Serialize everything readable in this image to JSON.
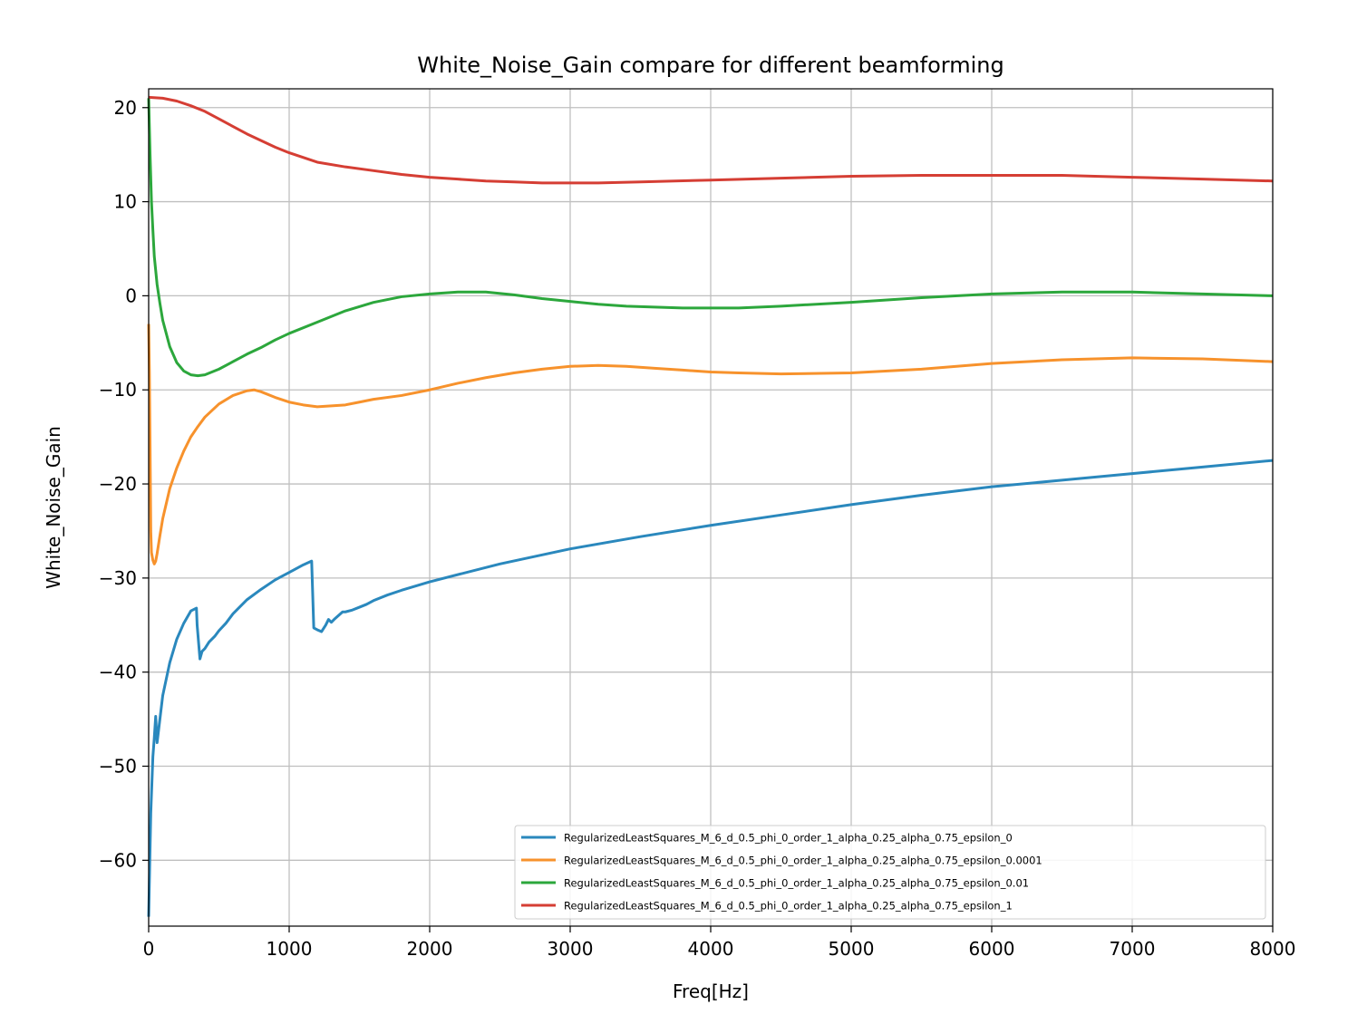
{
  "chart_data": {
    "type": "line",
    "title": "White_Noise_Gain compare for different beamforming",
    "xlabel": "Freq[Hz]",
    "ylabel": "White_Noise_Gain",
    "xlim": [
      0,
      8000
    ],
    "ylim": [
      -67,
      22
    ],
    "xticks": [
      0,
      1000,
      2000,
      3000,
      4000,
      5000,
      6000,
      7000,
      8000
    ],
    "yticks": [
      20,
      10,
      0,
      -10,
      -20,
      -30,
      -40,
      -50,
      -60
    ],
    "grid": true,
    "legend_position": "lower-right",
    "series": [
      {
        "name": "RegularizedLeastSquares_M_6_d_0.5_phi_0_order_1_alpha_0.25_alpha_0.75_epsilon_0",
        "color": "#2a88bd",
        "x": [
          0,
          15,
          30,
          40,
          50,
          60,
          80,
          100,
          150,
          200,
          250,
          300,
          340,
          345,
          365,
          380,
          400,
          430,
          470,
          500,
          550,
          600,
          700,
          800,
          900,
          1000,
          1100,
          1160,
          1175,
          1200,
          1230,
          1260,
          1280,
          1300,
          1320,
          1350,
          1380,
          1400,
          1450,
          1500,
          1550,
          1600,
          1700,
          1800,
          2000,
          2500,
          3000,
          3500,
          4000,
          4500,
          5000,
          5500,
          6000,
          6500,
          7000,
          7500,
          8000
        ],
        "y": [
          -66,
          -55,
          -49,
          -47,
          -44.7,
          -47.5,
          -45,
          -42.5,
          -39,
          -36.5,
          -34.8,
          -33.5,
          -33.2,
          -35,
          -38.6,
          -37.8,
          -37.5,
          -36.8,
          -36.2,
          -35.6,
          -34.8,
          -33.8,
          -32.3,
          -31.2,
          -30.2,
          -29.4,
          -28.6,
          -28.2,
          -35.3,
          -35.5,
          -35.7,
          -35.0,
          -34.4,
          -34.7,
          -34.4,
          -34.0,
          -33.6,
          -33.6,
          -33.4,
          -33.1,
          -32.8,
          -32.4,
          -31.8,
          -31.3,
          -30.4,
          -28.5,
          -26.9,
          -25.6,
          -24.4,
          -23.3,
          -22.2,
          -21.2,
          -20.3,
          -19.6,
          -18.9,
          -18.2,
          -17.5
        ]
      },
      {
        "name": "RegularizedLeastSquares_M_6_d_0.5_phi_0_order_1_alpha_0.25_alpha_0.75_epsilon_0.0001",
        "color": "#f7922c",
        "x": [
          0,
          5,
          10,
          15,
          20,
          30,
          40,
          50,
          60,
          80,
          100,
          150,
          200,
          250,
          300,
          350,
          400,
          500,
          600,
          700,
          750,
          800,
          900,
          1000,
          1100,
          1200,
          1300,
          1400,
          1500,
          1600,
          1800,
          2000,
          2200,
          2400,
          2600,
          2800,
          3000,
          3200,
          3400,
          3600,
          3800,
          4000,
          4200,
          4500,
          5000,
          5500,
          6000,
          6500,
          7000,
          7500,
          8000
        ],
        "y": [
          -3,
          -8,
          -16,
          -25,
          -27.3,
          -28.1,
          -28.5,
          -28.2,
          -27.4,
          -25.5,
          -23.7,
          -20.5,
          -18.3,
          -16.5,
          -15.0,
          -13.9,
          -12.9,
          -11.5,
          -10.6,
          -10.1,
          -10.0,
          -10.2,
          -10.8,
          -11.3,
          -11.6,
          -11.8,
          -11.7,
          -11.6,
          -11.3,
          -11.0,
          -10.6,
          -10.0,
          -9.3,
          -8.7,
          -8.2,
          -7.8,
          -7.5,
          -7.4,
          -7.5,
          -7.7,
          -7.9,
          -8.1,
          -8.2,
          -8.3,
          -8.2,
          -7.8,
          -7.2,
          -6.8,
          -6.6,
          -6.7,
          -7.0
        ]
      },
      {
        "name": "RegularizedLeastSquares_M_6_d_0.5_phi_0_order_1_alpha_0.25_alpha_0.75_epsilon_0.01",
        "color": "#2ca73c",
        "x": [
          0,
          10,
          20,
          30,
          40,
          60,
          80,
          100,
          150,
          200,
          250,
          300,
          350,
          400,
          500,
          600,
          700,
          800,
          900,
          1000,
          1200,
          1400,
          1600,
          1800,
          2000,
          2200,
          2400,
          2600,
          2800,
          3000,
          3200,
          3400,
          3600,
          3800,
          4000,
          4200,
          4500,
          5000,
          5500,
          6000,
          6500,
          7000,
          7500,
          8000
        ],
        "y": [
          21,
          15,
          10,
          7,
          4.2,
          1.2,
          -0.8,
          -2.6,
          -5.4,
          -7.1,
          -8.0,
          -8.4,
          -8.5,
          -8.4,
          -7.8,
          -7.0,
          -6.2,
          -5.5,
          -4.7,
          -4.0,
          -2.8,
          -1.6,
          -0.7,
          -0.1,
          0.2,
          0.4,
          0.4,
          0.1,
          -0.3,
          -0.6,
          -0.9,
          -1.1,
          -1.2,
          -1.3,
          -1.3,
          -1.3,
          -1.1,
          -0.7,
          -0.2,
          0.2,
          0.4,
          0.4,
          0.2,
          0.0
        ]
      },
      {
        "name": "RegularizedLeastSquares_M_6_d_0.5_phi_0_order_1_alpha_0.25_alpha_0.75_epsilon_1",
        "color": "#d53e34",
        "x": [
          0,
          100,
          200,
          300,
          400,
          500,
          600,
          700,
          800,
          900,
          1000,
          1200,
          1400,
          1600,
          1800,
          2000,
          2200,
          2400,
          2600,
          2800,
          3000,
          3200,
          3500,
          4000,
          4500,
          5000,
          5500,
          6000,
          6500,
          7000,
          7500,
          8000
        ],
        "y": [
          21.1,
          21.0,
          20.7,
          20.2,
          19.6,
          18.8,
          18.0,
          17.2,
          16.5,
          15.8,
          15.2,
          14.2,
          13.7,
          13.3,
          12.9,
          12.6,
          12.4,
          12.2,
          12.1,
          12.0,
          12.0,
          12.0,
          12.1,
          12.3,
          12.5,
          12.7,
          12.8,
          12.8,
          12.8,
          12.6,
          12.4,
          12.2
        ]
      }
    ]
  }
}
